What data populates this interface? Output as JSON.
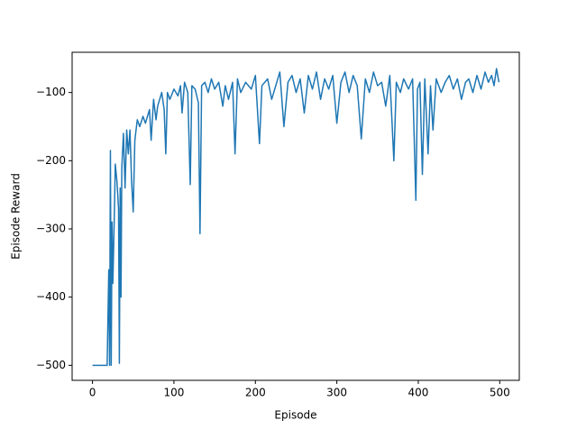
{
  "chart_data": {
    "type": "line",
    "xlabel": "Episode",
    "ylabel": "Episode Reward",
    "xlim": [
      -25,
      524
    ],
    "ylim": [
      -522,
      -41
    ],
    "xticks": [
      0,
      100,
      200,
      300,
      400,
      500
    ],
    "yticks": [
      {
        "value": -500,
        "label": "−500"
      },
      {
        "value": -400,
        "label": "−400"
      },
      {
        "value": -300,
        "label": "−300"
      },
      {
        "value": -200,
        "label": "−200"
      },
      {
        "value": -100,
        "label": "−100"
      }
    ],
    "color": "#1f77b4",
    "x": [
      0,
      18,
      20,
      21,
      22,
      23,
      24,
      25,
      27,
      28,
      30,
      32,
      33,
      34,
      35,
      36,
      38,
      40,
      42,
      44,
      46,
      48,
      50,
      52,
      55,
      58,
      62,
      65,
      70,
      72,
      75,
      78,
      80,
      85,
      88,
      90,
      92,
      95,
      100,
      105,
      108,
      110,
      113,
      117,
      120,
      122,
      126,
      130,
      132,
      134,
      138,
      142,
      146,
      150,
      155,
      160,
      163,
      167,
      172,
      175,
      178,
      182,
      188,
      195,
      200,
      205,
      208,
      215,
      220,
      225,
      230,
      235,
      240,
      245,
      250,
      255,
      260,
      265,
      270,
      275,
      280,
      285,
      290,
      295,
      300,
      305,
      310,
      315,
      320,
      325,
      330,
      335,
      340,
      345,
      350,
      355,
      360,
      365,
      370,
      373,
      378,
      382,
      388,
      393,
      397,
      399,
      402,
      405,
      408,
      412,
      415,
      418,
      422,
      428,
      433,
      438,
      443,
      448,
      453,
      458,
      462,
      467,
      472,
      477,
      482,
      486,
      490,
      493,
      496,
      499
    ],
    "values": [
      -500,
      -500,
      -360,
      -500,
      -185,
      -500,
      -290,
      -380,
      -270,
      -205,
      -230,
      -270,
      -497,
      -240,
      -400,
      -210,
      -160,
      -240,
      -155,
      -190,
      -155,
      -230,
      -275,
      -170,
      -140,
      -150,
      -135,
      -145,
      -125,
      -170,
      -110,
      -140,
      -120,
      -100,
      -125,
      -190,
      -100,
      -110,
      -95,
      -105,
      -90,
      -130,
      -85,
      -100,
      -235,
      -90,
      -95,
      -115,
      -307,
      -90,
      -85,
      -100,
      -80,
      -95,
      -85,
      -120,
      -90,
      -110,
      -85,
      -190,
      -80,
      -100,
      -85,
      -95,
      -75,
      -175,
      -90,
      -80,
      -110,
      -90,
      -70,
      -150,
      -85,
      -75,
      -100,
      -80,
      -130,
      -75,
      -95,
      -70,
      -110,
      -80,
      -95,
      -75,
      -145,
      -85,
      -70,
      -100,
      -75,
      -90,
      -168,
      -80,
      -100,
      -70,
      -90,
      -85,
      -120,
      -75,
      -200,
      -85,
      -100,
      -80,
      -95,
      -80,
      -258,
      -95,
      -85,
      -220,
      -80,
      -190,
      -90,
      -155,
      -80,
      -100,
      -85,
      -75,
      -95,
      -80,
      -110,
      -85,
      -80,
      -100,
      -75,
      -95,
      -70,
      -85,
      -75,
      -90,
      -65,
      -85
    ]
  }
}
